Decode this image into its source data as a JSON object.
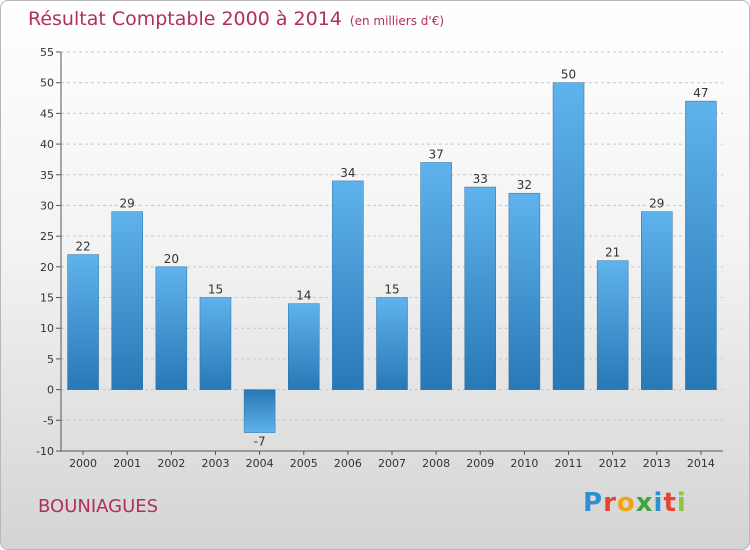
{
  "header": {
    "title": "Résultat Comptable 2000 à 2014",
    "subtitle": "(en milliers d'€)"
  },
  "footer": {
    "commune": "BOUNIAGUES",
    "logo_letters": [
      "P",
      "r",
      "o",
      "x",
      "i",
      "t",
      "i"
    ],
    "logo_colors": [
      "#2b8fd0",
      "#e6442f",
      "#f2a30f",
      "#3da63d",
      "#2b8fd0",
      "#e6442f",
      "#8dc63f"
    ]
  },
  "chart_data": {
    "type": "bar",
    "title": "Résultat Comptable 2000 à 2014",
    "subtitle": "(en milliers d'€)",
    "xlabel": "",
    "ylabel": "",
    "categories": [
      "2000",
      "2001",
      "2002",
      "2003",
      "2004",
      "2005",
      "2006",
      "2007",
      "2008",
      "2009",
      "2010",
      "2011",
      "2012",
      "2013",
      "2014"
    ],
    "values": [
      22,
      29,
      20,
      15,
      -7,
      14,
      34,
      15,
      37,
      33,
      32,
      50,
      21,
      29,
      47
    ],
    "ylim": [
      -10,
      55
    ],
    "yticks": [
      -10,
      -5,
      0,
      5,
      10,
      15,
      20,
      25,
      30,
      35,
      40,
      45,
      50,
      55
    ],
    "grid": true,
    "legend": "none",
    "bar_color": "#3d9ad8"
  }
}
